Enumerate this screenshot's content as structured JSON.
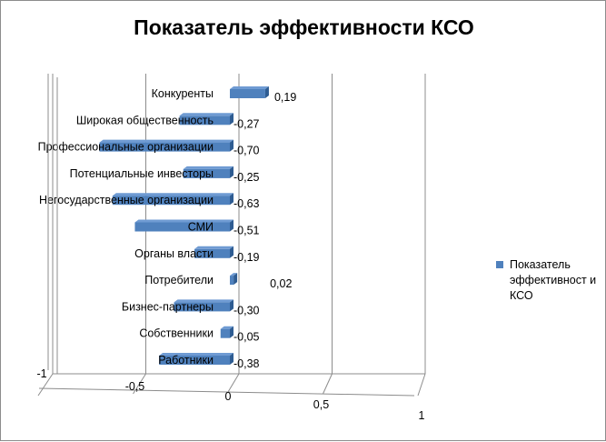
{
  "chart_data": {
    "type": "bar",
    "orientation": "horizontal",
    "style": "3d",
    "title": "Показатель эффективности КСО",
    "categories": [
      "Конкуренты",
      "Широкая общественность",
      "Профессиональные организации",
      "Потенциальные инвесторы",
      "Негосударственные организации",
      "СМИ",
      "Органы власти",
      "Потребители",
      "Бизнес-партнеры",
      "Собственники",
      "Работники"
    ],
    "series": [
      {
        "name": "Показатель эффективност и КСО",
        "values": [
          0.19,
          -0.27,
          -0.7,
          -0.25,
          -0.63,
          -0.51,
          -0.19,
          0.02,
          -0.3,
          -0.05,
          -0.38
        ],
        "value_labels": [
          "0,19",
          "-0,27",
          "-0,70",
          "-0,25",
          "-0,63",
          "-0,51",
          "-0,19",
          "0,02",
          "-0,30",
          "-0,05",
          "-0,38"
        ],
        "color": "#4f81bd"
      }
    ],
    "xlim": [
      -1,
      1
    ],
    "x_ticks": [
      -1,
      -0.5,
      0,
      0.5,
      1
    ],
    "x_tick_labels": [
      "-1",
      "-0,5",
      "0",
      "0,5",
      "1"
    ],
    "grid": true,
    "legend_position": "right"
  }
}
